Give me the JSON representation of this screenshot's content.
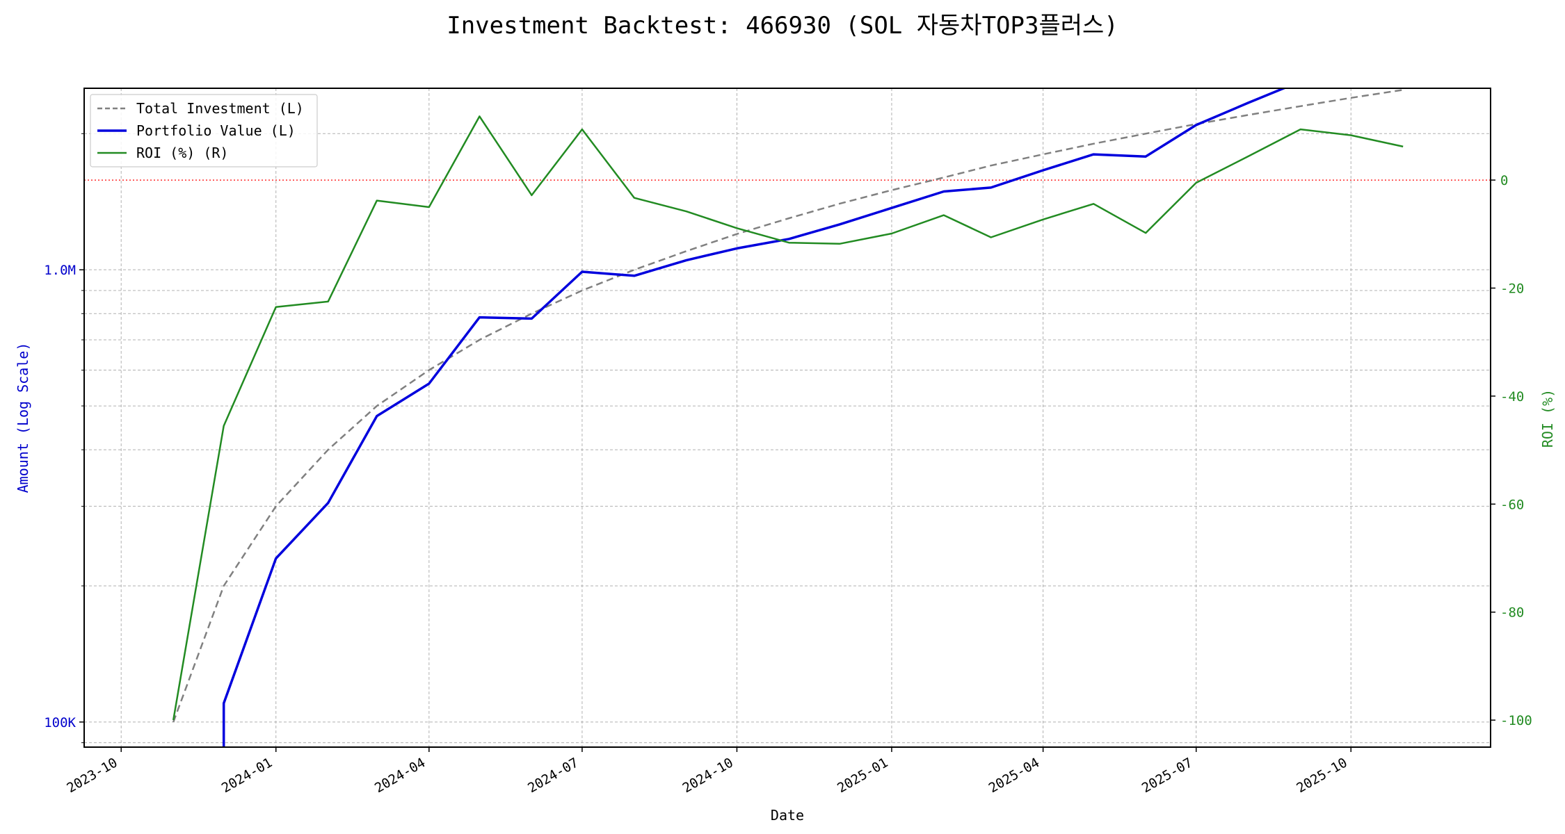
{
  "chart_data": {
    "type": "line",
    "title": "Investment Backtest: 466930 (SOL 자동차TOP3플러스)",
    "xlabel": "Date",
    "ylabel_left": "Amount (Log Scale)",
    "ylabel_right": "ROI (%)",
    "left_axis": {
      "scale": "log",
      "range": [
        88000,
        2520000
      ],
      "tick_labels": [
        {
          "value": 100000,
          "label": "100K"
        },
        {
          "value": 1000000,
          "label": "1.0M"
        }
      ],
      "minor_ticks": [
        90000,
        200000,
        300000,
        400000,
        500000,
        600000,
        700000,
        800000,
        900000,
        2000000
      ]
    },
    "right_axis": {
      "range": [
        -105,
        17
      ],
      "ticks": [
        0,
        -20,
        -40,
        -60,
        -80,
        -100
      ]
    },
    "x_axis": {
      "range": [
        "2023-09-09",
        "2025-12-23"
      ],
      "ticks": [
        "2023-10-01",
        "2024-01-01",
        "2024-04-01",
        "2024-07-01",
        "2024-10-01",
        "2025-01-01",
        "2025-04-01",
        "2025-07-01",
        "2025-10-01"
      ],
      "tick_labels": [
        "2023-10",
        "2024-01",
        "2024-04",
        "2024-07",
        "2024-10",
        "2025-01",
        "2025-04",
        "2025-07",
        "2025-10"
      ]
    },
    "grid": true,
    "legend_position": "upper-left",
    "reference_line": {
      "axis": "right",
      "value": 0,
      "color": "#ff0000",
      "style": "dotted"
    },
    "dates": [
      "2023-11-01",
      "2023-12-01",
      "2024-01-01",
      "2024-02-01",
      "2024-03-01",
      "2024-04-01",
      "2024-05-01",
      "2024-06-01",
      "2024-07-01",
      "2024-08-01",
      "2024-09-01",
      "2024-10-01",
      "2024-11-01",
      "2024-12-01",
      "2025-01-01",
      "2025-02-01",
      "2025-03-01",
      "2025-04-01",
      "2025-05-01",
      "2025-06-01",
      "2025-07-01",
      "2025-08-01",
      "2025-09-01",
      "2025-10-01",
      "2025-11-01"
    ],
    "series": [
      {
        "name": "Total Investment (L)",
        "axis": "left",
        "color": "#808080",
        "dash": "dashed",
        "values": [
          100000,
          200000,
          300000,
          400000,
          500000,
          600000,
          700000,
          800000,
          900000,
          1000000,
          1100000,
          1200000,
          1300000,
          1400000,
          1500000,
          1600000,
          1700000,
          1800000,
          1900000,
          2000000,
          2100000,
          2200000,
          2300000,
          2400000,
          2500000
        ]
      },
      {
        "name": "Portfolio Value (L)",
        "axis": "left",
        "color": "#0000dd",
        "dash": "solid",
        "values": [
          null,
          85000,
          230000,
          305000,
          475000,
          560000,
          785000,
          780000,
          990000,
          970000,
          1050000,
          1115000,
          1170000,
          1260000,
          1370000,
          1490000,
          1520000,
          1660000,
          1800000,
          1780000,
          2090000,
          2340000,
          2610000,
          2690000,
          2740000
        ],
        "start_value": 110000
      },
      {
        "name": "ROI (%) (R)",
        "axis": "right",
        "color": "#228b22",
        "dash": "solid",
        "values": [
          -100,
          -45.5,
          -23.5,
          -22.5,
          -3.8,
          -5,
          11.8,
          -2.8,
          9.4,
          -3.3,
          -5.8,
          -8.9,
          -11.6,
          -11.8,
          -9.9,
          -6.5,
          -10.6,
          -7.3,
          -4.4,
          -9.8,
          -0.5,
          4.4,
          9.4,
          8.3,
          6.2
        ]
      }
    ]
  }
}
